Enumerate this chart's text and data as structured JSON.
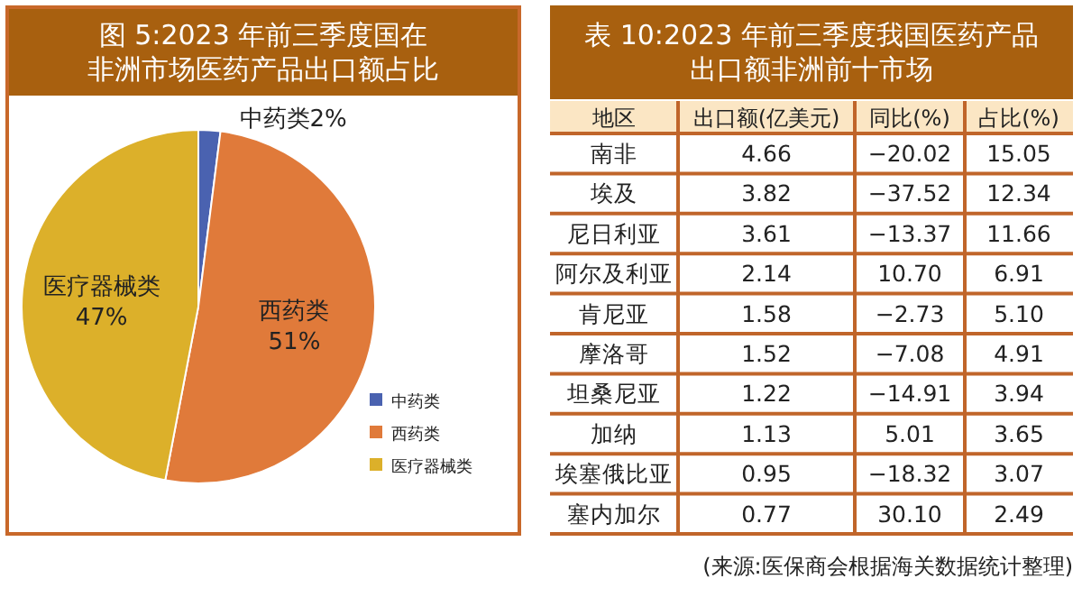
{
  "chart_data": [
    {
      "type": "pie",
      "title": "图 5:2023 年前三季度国在非洲市场医药产品出口额占比",
      "categories": [
        "中药类",
        "西药类",
        "医疗器械类"
      ],
      "values": [
        2,
        51,
        47
      ],
      "value_labels": [
        "2%",
        "51%",
        "47%"
      ],
      "colors": [
        "#4a62b0",
        "#e07a3a",
        "#dcb02a"
      ],
      "data_labels": true,
      "legend": "bottom right"
    },
    {
      "type": "other",
      "title": "表 10:2023 年前三季度我国医药产品出口额非洲前十市场",
      "xlabel": "地区",
      "categories": [
        "南非",
        "埃及",
        "尼日利亚",
        "阿尔及利亚",
        "肯尼亚",
        "摩洛哥",
        "坦桑尼亚",
        "加纳",
        "埃塞俄比亚",
        "塞内加尔"
      ],
      "series": [
        {
          "name": "出口额(亿美元)",
          "values": [
            4.66,
            3.82,
            3.61,
            2.14,
            1.58,
            1.52,
            1.22,
            1.13,
            0.95,
            0.77
          ],
          "value_labels": [
            "4.66",
            "3.82",
            "3.61",
            "2.14",
            "1.58",
            "1.52",
            "1.22",
            "1.13",
            "0.95",
            "0.77"
          ]
        },
        {
          "name": "同比(%)",
          "values": [
            -20.02,
            -37.52,
            -13.37,
            10.7,
            -2.73,
            -7.08,
            -14.91,
            5.01,
            -18.32,
            30.1
          ],
          "value_labels": [
            "−20.02",
            "−37.52",
            "−13.37",
            "10.70",
            "−2.73",
            "−7.08",
            "−14.91",
            "5.01",
            "−18.32",
            "30.10"
          ]
        },
        {
          "name": "占比(%)",
          "values": [
            15.05,
            12.34,
            11.66,
            6.91,
            5.1,
            4.91,
            3.94,
            3.65,
            3.07,
            2.49
          ],
          "value_labels": [
            "15.05",
            "12.34",
            "11.66",
            "6.91",
            "5.10",
            "4.91",
            "3.94",
            "3.65",
            "3.07",
            "2.49"
          ]
        }
      ],
      "annotations": [
        "(来源:医保商会根据海关数据统计整理)"
      ]
    }
  ]
}
